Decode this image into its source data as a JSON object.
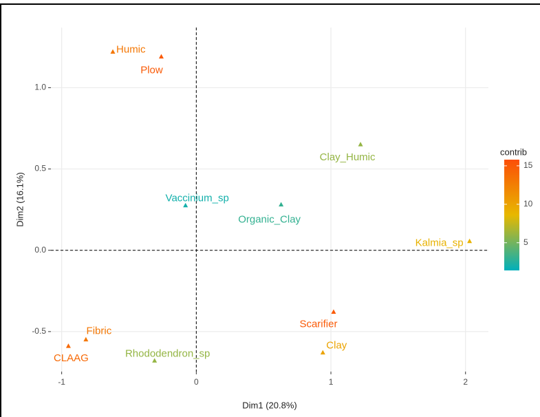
{
  "chart_data": {
    "type": "scatter",
    "xlabel": "Dim1 (20.8%)",
    "ylabel": "Dim2 (16.1%)",
    "xlim": [
      -1.08,
      2.17
    ],
    "ylim": [
      -0.746,
      1.37
    ],
    "xticks": [
      -1,
      0,
      1,
      2
    ],
    "yticks": [
      -0.5,
      {
        "value": 0,
        "label": "0.0"
      },
      0.5,
      {
        "value": 1,
        "label": "1.0"
      }
    ],
    "grid": true,
    "hline": 0,
    "vline": 0,
    "color_title": "contrib",
    "color_lim": [
      1.4,
      15.8
    ],
    "color_ticks": [
      5,
      10,
      15
    ],
    "gradient": [
      "#00AFBB",
      "#E7B800",
      "#FC4E07"
    ],
    "points": [
      {
        "label": "Humic",
        "x": -0.62,
        "y": 1.22,
        "contrib": 13
      },
      {
        "label": "Plow",
        "x": -0.26,
        "y": 1.19,
        "contrib": 15
      },
      {
        "label": "Vaccinium_sp",
        "x": -0.08,
        "y": 0.275,
        "contrib": 2
      },
      {
        "label": "Organic_Clay",
        "x": 0.63,
        "y": 0.28,
        "contrib": 3
      },
      {
        "label": "Clay_Humic",
        "x": 1.22,
        "y": 0.65,
        "contrib": 6
      },
      {
        "label": "Kalmia_sp",
        "x": 2.03,
        "y": 0.055,
        "contrib": 9
      },
      {
        "label": "Scarifier",
        "x": 1.02,
        "y": -0.38,
        "contrib": 15
      },
      {
        "label": "Clay",
        "x": 0.94,
        "y": -0.63,
        "contrib": 10
      },
      {
        "label": "Fibric",
        "x": -0.82,
        "y": -0.55,
        "contrib": 13
      },
      {
        "label": "CLAAG",
        "x": -0.95,
        "y": -0.59,
        "contrib": 14
      },
      {
        "label": "Rhododendron_sp",
        "x": -0.31,
        "y": -0.68,
        "contrib": 6
      }
    ]
  }
}
